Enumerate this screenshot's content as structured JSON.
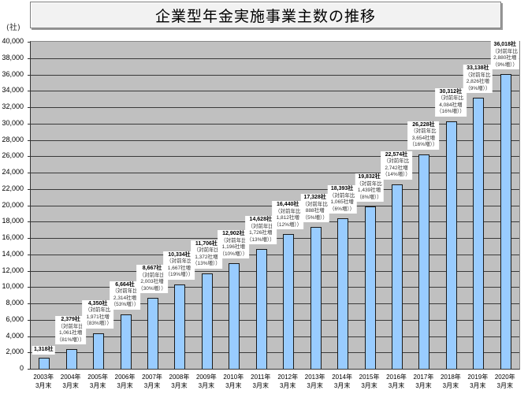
{
  "chart_data": {
    "type": "bar",
    "title": "企業型年金実施事業主数の推移",
    "xlabel": "",
    "ylabel": "(社)",
    "ylim": [
      0,
      40000
    ],
    "yticks": [
      "0",
      "2,000",
      "4,000",
      "6,000",
      "8,000",
      "10,000",
      "12,000",
      "14,000",
      "16,000",
      "18,000",
      "20,000",
      "22,000",
      "24,000",
      "26,000",
      "28,000",
      "30,000",
      "32,000",
      "34,000",
      "36,000",
      "38,000",
      "40,000"
    ],
    "grid": true,
    "legend": null,
    "bar_color": "#99ccff",
    "plot_bg": "#c0c0c0",
    "categories": [
      "2003年 3月末",
      "2004年 3月末",
      "2005年 3月末",
      "2006年 3月末",
      "2007年 3月末",
      "2008年 3月末",
      "2009年 3月末",
      "2010年 3月末",
      "2011年 3月末",
      "2012年 3月末",
      "2013年 3月末",
      "2014年 3月末",
      "2015年 3月末",
      "2016年 3月末",
      "2017年 3月末",
      "2018年 3月末",
      "2019年 3月末",
      "2020年 3月末"
    ],
    "values": [
      1318,
      2379,
      4350,
      6664,
      8667,
      10334,
      11706,
      12902,
      14628,
      16440,
      17328,
      18393,
      19832,
      22574,
      26228,
      30312,
      33138,
      36018
    ],
    "annotations": [
      {
        "value": "1,318社"
      },
      {
        "value": "2,379社",
        "l1": "（対前年比",
        "l2": "1,061社増",
        "l3": "（81%増））"
      },
      {
        "value": "4,350社",
        "l1": "（対前年比",
        "l2": "1,971社増",
        "l3": "（83%増））"
      },
      {
        "value": "6,664社",
        "l1": "（対前年比",
        "l2": "2,314社増",
        "l3": "（53%増））"
      },
      {
        "value": "8,667社",
        "l1": "（対前年比",
        "l2": "2,003社増",
        "l3": "（30%増））"
      },
      {
        "value": "10,334社",
        "l1": "（対前年比",
        "l2": "1,667社増",
        "l3": "（19%増））"
      },
      {
        "value": "11,706社",
        "l1": "（対前年比",
        "l2": "1,372社増",
        "l3": "（13%増））"
      },
      {
        "value": "12,902社",
        "l1": "（対前年比",
        "l2": "1,196社増",
        "l3": "（10%増））"
      },
      {
        "value": "14,628社",
        "l1": "（対前年比",
        "l2": "1,726社増",
        "l3": "（13%増））"
      },
      {
        "value": "16,440社",
        "l1": "（対前年比",
        "l2": "1,812社増",
        "l3": "（12%増））"
      },
      {
        "value": "17,328社",
        "l1": "（対前年比",
        "l2": "888社増",
        "l3": "（5%増））"
      },
      {
        "value": "18,393社",
        "l1": "（対前年比",
        "l2": "1,065社増",
        "l3": "（6%増））"
      },
      {
        "value": "19,832社",
        "l1": "（対前年比",
        "l2": "1,439社増",
        "l3": "（8%増））"
      },
      {
        "value": "22,574社",
        "l1": "（対前年比",
        "l2": "2,742社増",
        "l3": "（14%増））"
      },
      {
        "value": "26,228社",
        "l1": "（対前年比",
        "l2": "3,654社増",
        "l3": "（16%増））"
      },
      {
        "value": "30,312社",
        "l1": "（対前年比",
        "l2": "4,084社増",
        "l3": "（16%増））"
      },
      {
        "value": "33,138社",
        "l1": "（対前年比",
        "l2": "2,826社増",
        "l3": "（9%増））"
      },
      {
        "value": "36,018社",
        "l1": "（対前年比",
        "l2": "2,880社増",
        "l3": "（9%増））"
      }
    ],
    "x_labels": [
      {
        "year": "2003年",
        "month": "3月末"
      },
      {
        "year": "2004年",
        "month": "3月末"
      },
      {
        "year": "2005年",
        "month": "3月末"
      },
      {
        "year": "2006年",
        "month": "3月末"
      },
      {
        "year": "2007年",
        "month": "3月末"
      },
      {
        "year": "2008年",
        "month": "3月末"
      },
      {
        "year": "2009年",
        "month": "3月末"
      },
      {
        "year": "2010年",
        "month": "3月末"
      },
      {
        "year": "2011年",
        "month": "3月末"
      },
      {
        "year": "2012年",
        "month": "3月末"
      },
      {
        "year": "2013年",
        "month": "3月末"
      },
      {
        "year": "2014年",
        "month": "3月末"
      },
      {
        "year": "2015年",
        "month": "3月末"
      },
      {
        "year": "2016年",
        "month": "3月末"
      },
      {
        "year": "2017年",
        "month": "3月末"
      },
      {
        "year": "2018年",
        "month": "3月末"
      },
      {
        "year": "2019年",
        "month": "3月末"
      },
      {
        "year": "2020年",
        "month": "3月末"
      }
    ]
  }
}
